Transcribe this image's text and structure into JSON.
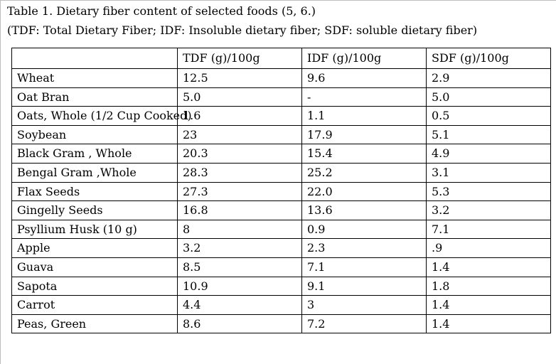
{
  "caption": {
    "line1": "Table 1. Dietary fiber content of selected foods (5, 6.)",
    "line2": "(TDF: Total Dietary Fiber; IDF: Insoluble dietary fiber; SDF: soluble dietary fiber)"
  },
  "table": {
    "headers": [
      "",
      "TDF (g)/100g",
      "IDF (g)/100g",
      "SDF (g)/100g"
    ],
    "rows": [
      [
        "Wheat",
        "12.5",
        "9.6",
        "2.9"
      ],
      [
        "Oat Bran",
        "5.0",
        "-",
        "5.0"
      ],
      [
        "Oats, Whole (1/2 Cup Cooked)",
        "1.6",
        "1.1",
        "0.5"
      ],
      [
        "Soybean",
        "23",
        "17.9",
        "5.1"
      ],
      [
        "Black Gram , Whole",
        "20.3",
        "15.4",
        "4.9"
      ],
      [
        "Bengal Gram ,Whole",
        "28.3",
        "25.2",
        "3.1"
      ],
      [
        "Flax Seeds",
        "27.3",
        "22.0",
        "5.3"
      ],
      [
        "Gingelly Seeds",
        "16.8",
        "13.6",
        "3.2"
      ],
      [
        "Psyllium Husk (10 g)",
        "8",
        "0.9",
        "7.1"
      ],
      [
        "Apple",
        "3.2",
        "2.3",
        ".9"
      ],
      [
        "Guava",
        "8.5",
        "7.1",
        "1.4"
      ],
      [
        "Sapota",
        "10.9",
        "9.1",
        "1.8"
      ],
      [
        "Carrot",
        "4.4",
        "3",
        "1.4"
      ],
      [
        "Peas, Green",
        "8.6",
        "7.2",
        "1.4"
      ]
    ]
  }
}
